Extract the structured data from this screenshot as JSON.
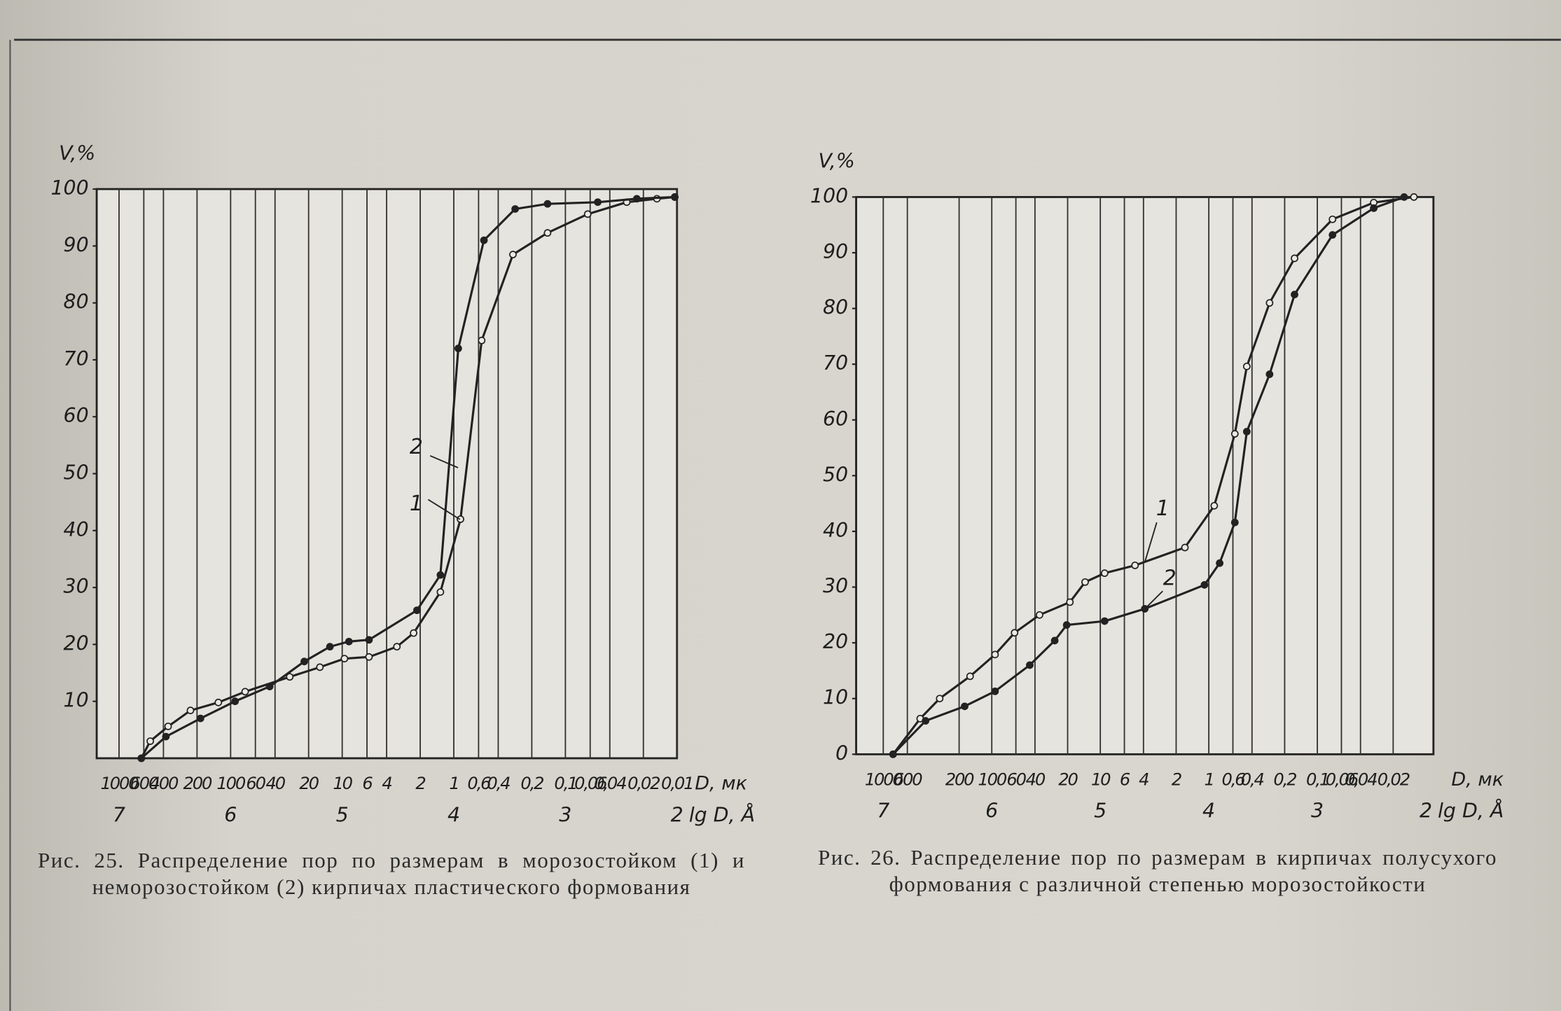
{
  "chart_data": [
    {
      "type": "line",
      "ylabel": "V,%",
      "xlabel": "D, мк",
      "x2label": "lg D, Å",
      "grid": "x",
      "xlim": [
        7.2,
        2
      ],
      "ylim": [
        0,
        100
      ],
      "yticks": [
        10,
        20,
        30,
        40,
        50,
        60,
        70,
        80,
        90,
        100
      ],
      "xticks": [
        {
          "value": 7,
          "label": "1000"
        },
        {
          "value": 6.778,
          "label": "600"
        },
        {
          "value": 6.602,
          "label": "400"
        },
        {
          "value": 6.301,
          "label": "200"
        },
        {
          "value": 6,
          "label": "100"
        },
        {
          "value": 5.778,
          "label": "60"
        },
        {
          "value": 5.602,
          "label": "40"
        },
        {
          "value": 5.301,
          "label": "20"
        },
        {
          "value": 5,
          "label": "10"
        },
        {
          "value": 4.778,
          "label": "6"
        },
        {
          "value": 4.602,
          "label": "4"
        },
        {
          "value": 4.301,
          "label": "2"
        },
        {
          "value": 4,
          "label": "1"
        },
        {
          "value": 3.778,
          "label": "0,6"
        },
        {
          "value": 3.602,
          "label": "0,4"
        },
        {
          "value": 3.301,
          "label": "0,2"
        },
        {
          "value": 3,
          "label": "0,1"
        },
        {
          "value": 2.778,
          "label": "0,06"
        },
        {
          "value": 2.602,
          "label": "0,04"
        },
        {
          "value": 2.301,
          "label": "0,02"
        },
        {
          "value": 2,
          "label": "0,01"
        }
      ],
      "x2ticks": [
        7,
        6,
        5,
        4,
        3,
        2
      ],
      "annotations": [
        "2",
        "1"
      ],
      "series": [
        {
          "name": "1",
          "color": "#222222",
          "marker": "open",
          "x": [
            6.8,
            6.72,
            6.56,
            6.36,
            6.11,
            5.87,
            5.47,
            5.2,
            4.98,
            4.76,
            4.51,
            4.36,
            4.12,
            3.94,
            3.75,
            3.47,
            3.16,
            2.8,
            2.45,
            2.18,
            2.02
          ],
          "values": [
            0,
            3,
            5.6,
            8.4,
            9.8,
            11.7,
            14.3,
            16,
            17.5,
            17.8,
            19.6,
            22,
            29.2,
            42,
            73.4,
            88.5,
            92.3,
            95.6,
            97.7,
            98.3,
            98.6
          ]
        },
        {
          "name": "2",
          "color": "#222222",
          "marker": "filled",
          "x": [
            6.8,
            6.58,
            6.27,
            5.96,
            5.65,
            5.34,
            5.11,
            4.94,
            4.76,
            4.33,
            4.12,
            3.96,
            3.73,
            3.45,
            3.16,
            2.71,
            2.36,
            2.02
          ],
          "values": [
            0,
            3.8,
            7,
            10,
            12.6,
            17,
            19.6,
            20.5,
            20.8,
            26,
            32.2,
            72,
            91,
            96.5,
            97.4,
            97.7,
            98.3,
            98.6
          ]
        }
      ],
      "caption": "Рис. 25. Распределение пор по размерам в морозостойком (1) и неморозостойком (2) кирпичах пластического формования"
    },
    {
      "type": "line",
      "ylabel": "V,%",
      "xlabel": "D, мк",
      "x2label": "lg D, Å",
      "grid": "x",
      "xlim": [
        7.25,
        1.93
      ],
      "ylim": [
        0,
        100
      ],
      "yticks": [
        0,
        10,
        20,
        30,
        40,
        50,
        60,
        70,
        80,
        90,
        100
      ],
      "xticks": [
        {
          "value": 7,
          "label": "1000"
        },
        {
          "value": 6.778,
          "label": "600"
        },
        {
          "value": 6.301,
          "label": "200"
        },
        {
          "value": 6,
          "label": "100"
        },
        {
          "value": 5.778,
          "label": "60"
        },
        {
          "value": 5.602,
          "label": "40"
        },
        {
          "value": 5.301,
          "label": "20"
        },
        {
          "value": 5,
          "label": "10"
        },
        {
          "value": 4.778,
          "label": "6"
        },
        {
          "value": 4.602,
          "label": "4"
        },
        {
          "value": 4.301,
          "label": "2"
        },
        {
          "value": 4,
          "label": "1"
        },
        {
          "value": 3.778,
          "label": "0,6"
        },
        {
          "value": 3.602,
          "label": "0,4"
        },
        {
          "value": 3.301,
          "label": "0,2"
        },
        {
          "value": 3,
          "label": "0,1"
        },
        {
          "value": 2.778,
          "label": "0,06"
        },
        {
          "value": 2.602,
          "label": "0,04"
        },
        {
          "value": 2.301,
          "label": "0,02"
        }
      ],
      "x2ticks": [
        7,
        6,
        5,
        4,
        3,
        2
      ],
      "annotations": [
        "1",
        "2"
      ],
      "series": [
        {
          "name": "1",
          "color": "#222222",
          "marker": "open",
          "x": [
            6.91,
            6.66,
            6.48,
            6.2,
            5.97,
            5.79,
            5.56,
            5.28,
            5.14,
            4.96,
            4.68,
            4.22,
            3.95,
            3.76,
            3.65,
            3.44,
            3.21,
            2.86,
            2.48,
            2.11
          ],
          "values": [
            0,
            6.4,
            10,
            14,
            17.9,
            21.8,
            25,
            27.3,
            30.9,
            32.5,
            33.9,
            37.1,
            44.6,
            57.5,
            69.6,
            81,
            89,
            96,
            99,
            100
          ]
        },
        {
          "name": "2",
          "color": "#222222",
          "marker": "filled",
          "x": [
            6.91,
            6.61,
            6.25,
            5.97,
            5.65,
            5.42,
            5.31,
            4.96,
            4.59,
            4.04,
            3.9,
            3.76,
            3.65,
            3.44,
            3.21,
            2.86,
            2.48,
            2.2
          ],
          "values": [
            0,
            6,
            8.6,
            11.3,
            16,
            20.4,
            23.2,
            23.9,
            26.1,
            30.4,
            34.3,
            41.6,
            57.9,
            68.2,
            82.5,
            93.2,
            98,
            100
          ]
        }
      ],
      "caption": "Рис. 26. Распределение пор по размерам в кирпичах полусухого формования с различной степенью морозостойкости"
    }
  ]
}
